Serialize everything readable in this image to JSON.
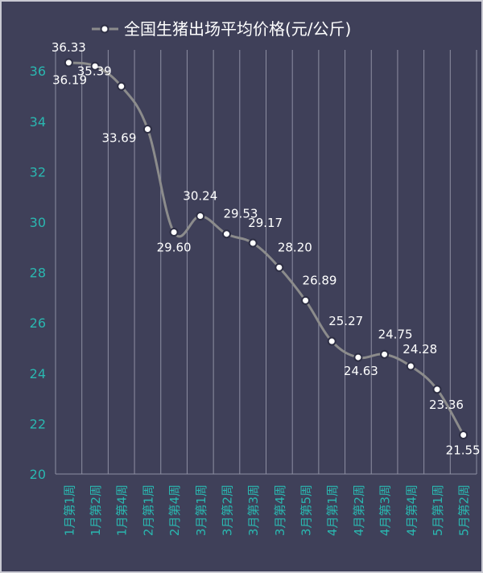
{
  "chart_data": {
    "type": "line",
    "title": "全国生猪出场平均价格(元/公斤)",
    "legend": [
      {
        "name": "全国生猪出场平均价格(元/公斤)",
        "placement": "top-center"
      }
    ],
    "categories": [
      "1月第1周",
      "1月第2周",
      "1月第4周",
      "2月第1周",
      "2月第4周",
      "3月第1周",
      "3月第2周",
      "3月第3周",
      "3月第4周",
      "3月第5周",
      "4月第1周",
      "4月第2周",
      "4月第3周",
      "4月第4周",
      "5月第1周",
      "5月第2周"
    ],
    "series": [
      {
        "name": "全国生猪出场平均价格(元/公斤)",
        "values": [
          36.33,
          36.19,
          35.39,
          33.69,
          29.6,
          30.24,
          29.53,
          29.17,
          28.2,
          26.89,
          25.27,
          24.63,
          24.75,
          24.28,
          23.36,
          21.55
        ]
      }
    ],
    "data_labels": [
      "36.33",
      "36.19",
      "35.39",
      "33.69",
      "29.60",
      "30.24",
      "29.53",
      "29.17",
      "28.20",
      "26.89",
      "25.27",
      "24.63",
      "24.75",
      "24.28",
      "23.36",
      "21.55"
    ],
    "ylim": [
      20,
      37
    ],
    "yticks": [
      "20",
      "22",
      "24",
      "26",
      "28",
      "30",
      "32",
      "34",
      "36"
    ],
    "xlabel": "",
    "ylabel": "",
    "grid": "vertical",
    "colors": {
      "background": "#3f4059",
      "line": "#8c8c8c",
      "tick": "#2ab7b0",
      "label": "#ffffff",
      "grid": "#8e8fa3"
    }
  }
}
